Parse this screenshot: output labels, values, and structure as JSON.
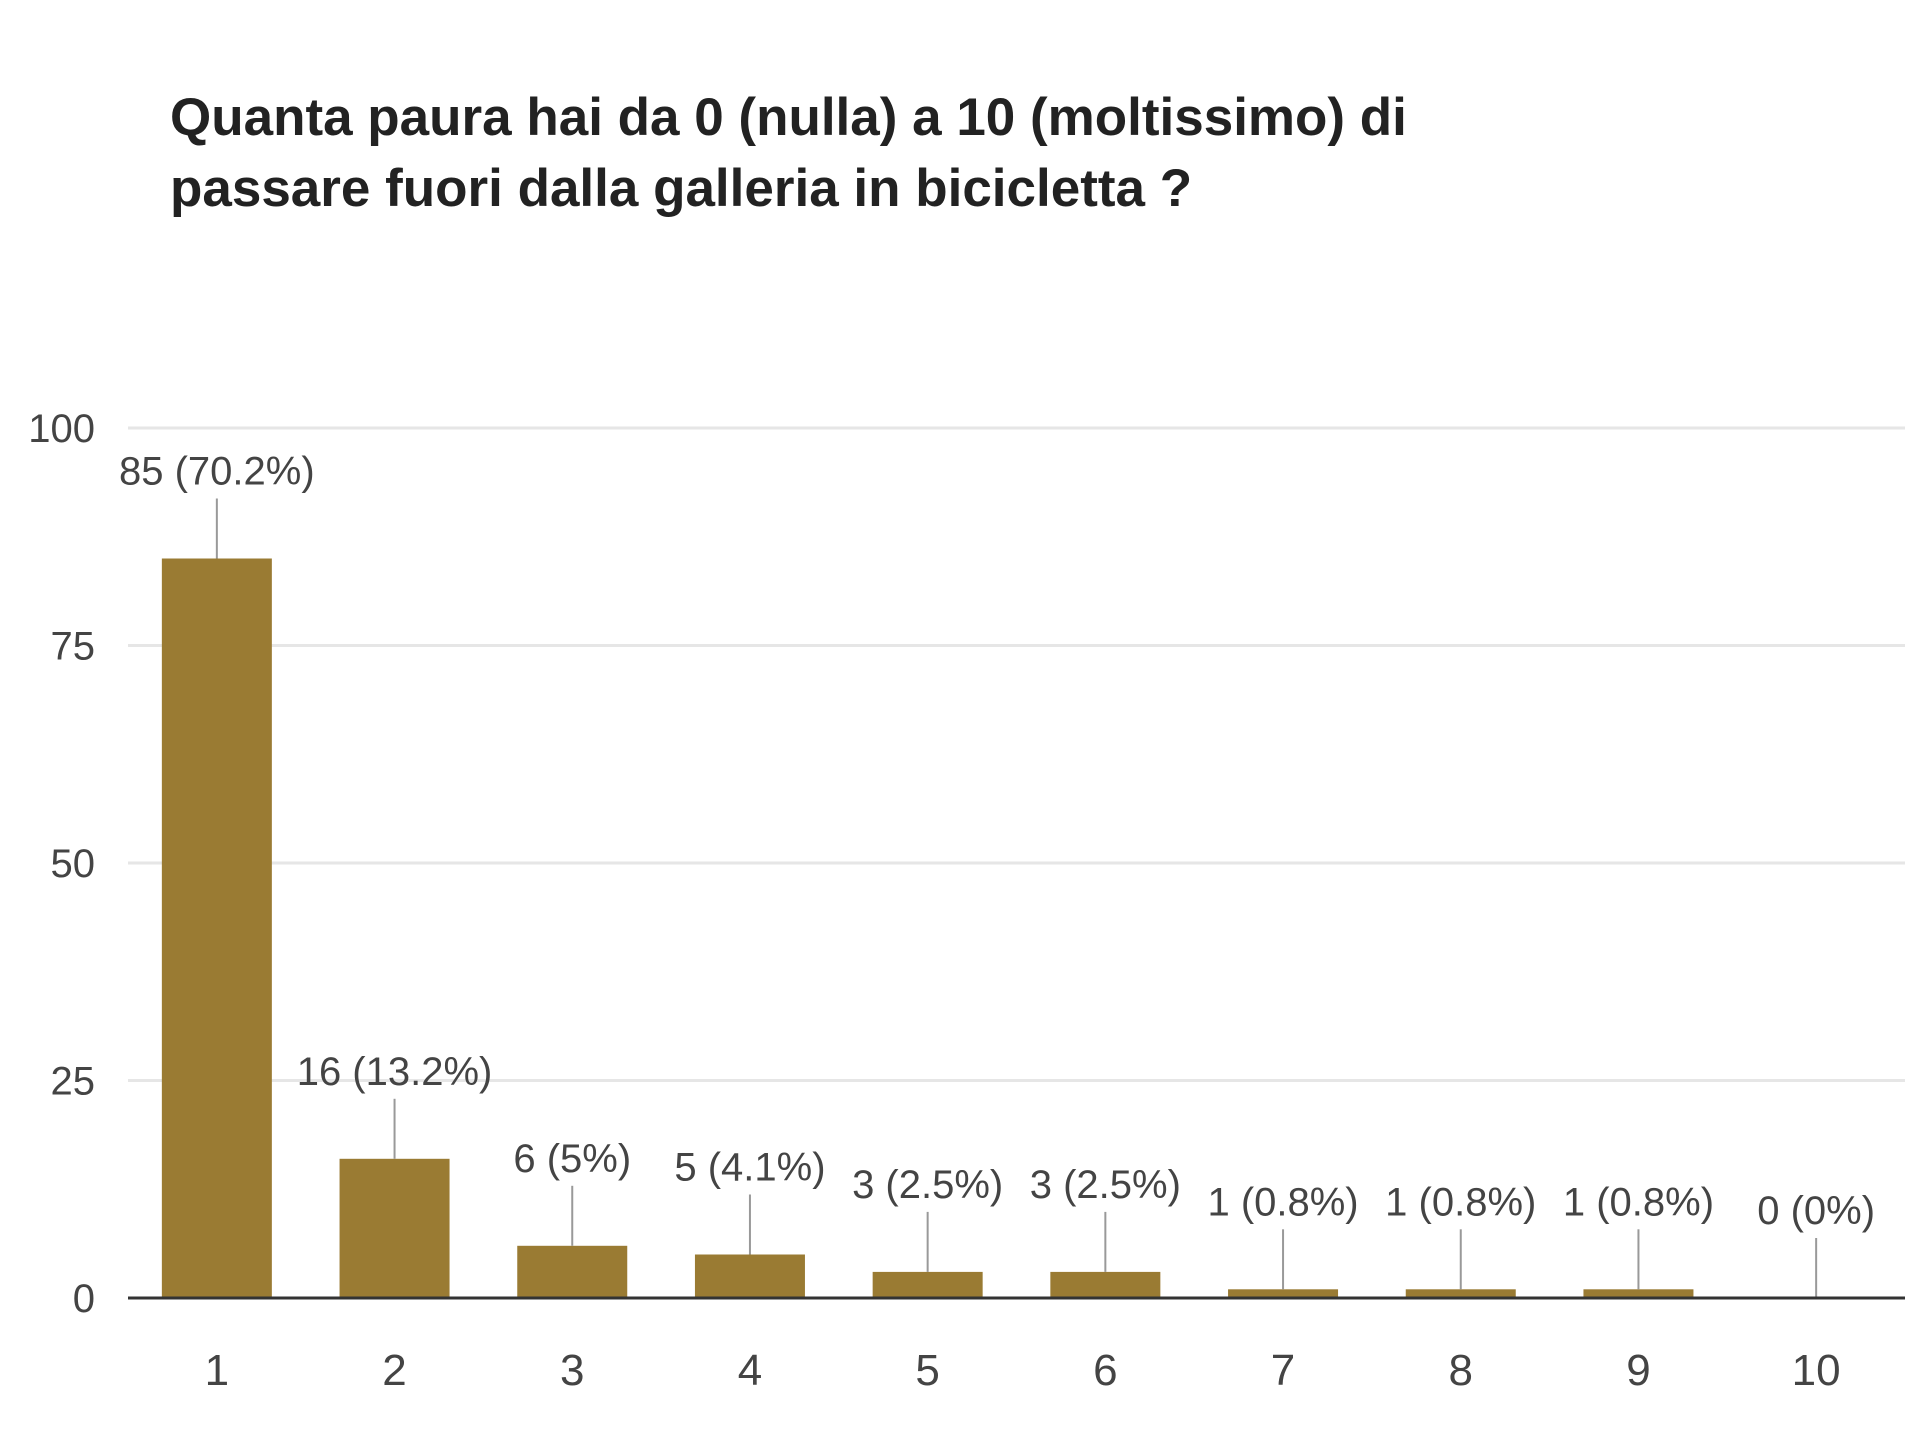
{
  "title": {
    "line1": "Quanta paura hai da 0 (nulla) a 10 (moltissimo) di",
    "line2": "passare fuori dalla galleria in bicicletta ?"
  },
  "colors": {
    "bar": "#9a7b33",
    "grid": "#e6e6e6",
    "axis": "#333333",
    "leader": "#999999",
    "text": "#444444"
  },
  "chart_data": {
    "type": "bar",
    "categories": [
      "1",
      "2",
      "3",
      "4",
      "5",
      "6",
      "7",
      "8",
      "9",
      "10"
    ],
    "values": [
      85,
      16,
      6,
      5,
      3,
      3,
      1,
      1,
      1,
      0
    ],
    "data_labels": [
      "85 (70.2%)",
      "16 (13.2%)",
      "6 (5%)",
      "5 (4.1%)",
      "3 (2.5%)",
      "3 (2.5%)",
      "1 (0.8%)",
      "1 (0.8%)",
      "1 (0.8%)",
      "0 (0%)"
    ],
    "ylim": [
      0,
      100
    ],
    "yticks": [
      0,
      25,
      50,
      75,
      100
    ],
    "ytick_labels": [
      "0",
      "25",
      "50",
      "75",
      "100"
    ],
    "grid": true,
    "legend": "none",
    "xlabel": "",
    "ylabel": ""
  }
}
